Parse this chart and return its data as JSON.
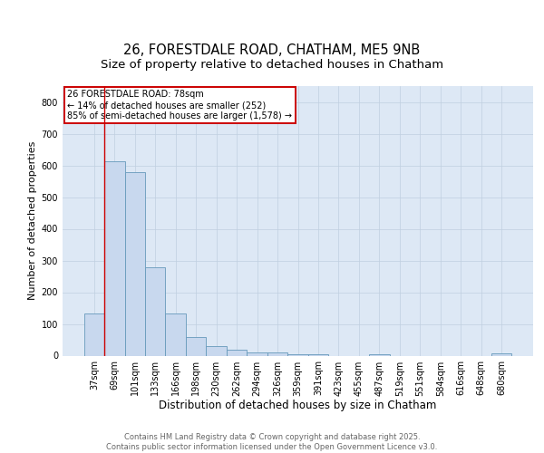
{
  "title1": "26, FORESTDALE ROAD, CHATHAM, ME5 9NB",
  "title2": "Size of property relative to detached houses in Chatham",
  "xlabel": "Distribution of detached houses by size in Chatham",
  "ylabel": "Number of detached properties",
  "categories": [
    "37sqm",
    "69sqm",
    "101sqm",
    "133sqm",
    "166sqm",
    "198sqm",
    "230sqm",
    "262sqm",
    "294sqm",
    "326sqm",
    "359sqm",
    "391sqm",
    "423sqm",
    "455sqm",
    "487sqm",
    "519sqm",
    "551sqm",
    "584sqm",
    "616sqm",
    "648sqm",
    "680sqm"
  ],
  "values": [
    133,
    613,
    578,
    278,
    133,
    60,
    30,
    18,
    10,
    10,
    5,
    3,
    0,
    0,
    5,
    0,
    0,
    0,
    0,
    0,
    8
  ],
  "bar_color": "#c8d8ee",
  "bar_edge_color": "#6699bb",
  "vline_x": 1.0,
  "vline_color": "#cc0000",
  "annotation_line1": "26 FORESTDALE ROAD: 78sqm",
  "annotation_line2": "← 14% of detached houses are smaller (252)",
  "annotation_line3": "85% of semi-detached houses are larger (1,578) →",
  "annotation_box_color": "#cc0000",
  "annotation_box_fill": "#ffffff",
  "ylim": [
    0,
    850
  ],
  "yticks": [
    0,
    100,
    200,
    300,
    400,
    500,
    600,
    700,
    800
  ],
  "grid_color": "#c0cfe0",
  "background_color": "#dde8f5",
  "footer_text": "Contains HM Land Registry data © Crown copyright and database right 2025.\nContains public sector information licensed under the Open Government Licence v3.0.",
  "title1_fontsize": 10.5,
  "title2_fontsize": 9.5,
  "xlabel_fontsize": 8.5,
  "ylabel_fontsize": 8,
  "tick_fontsize": 7,
  "annot_fontsize": 7,
  "footer_fontsize": 6
}
